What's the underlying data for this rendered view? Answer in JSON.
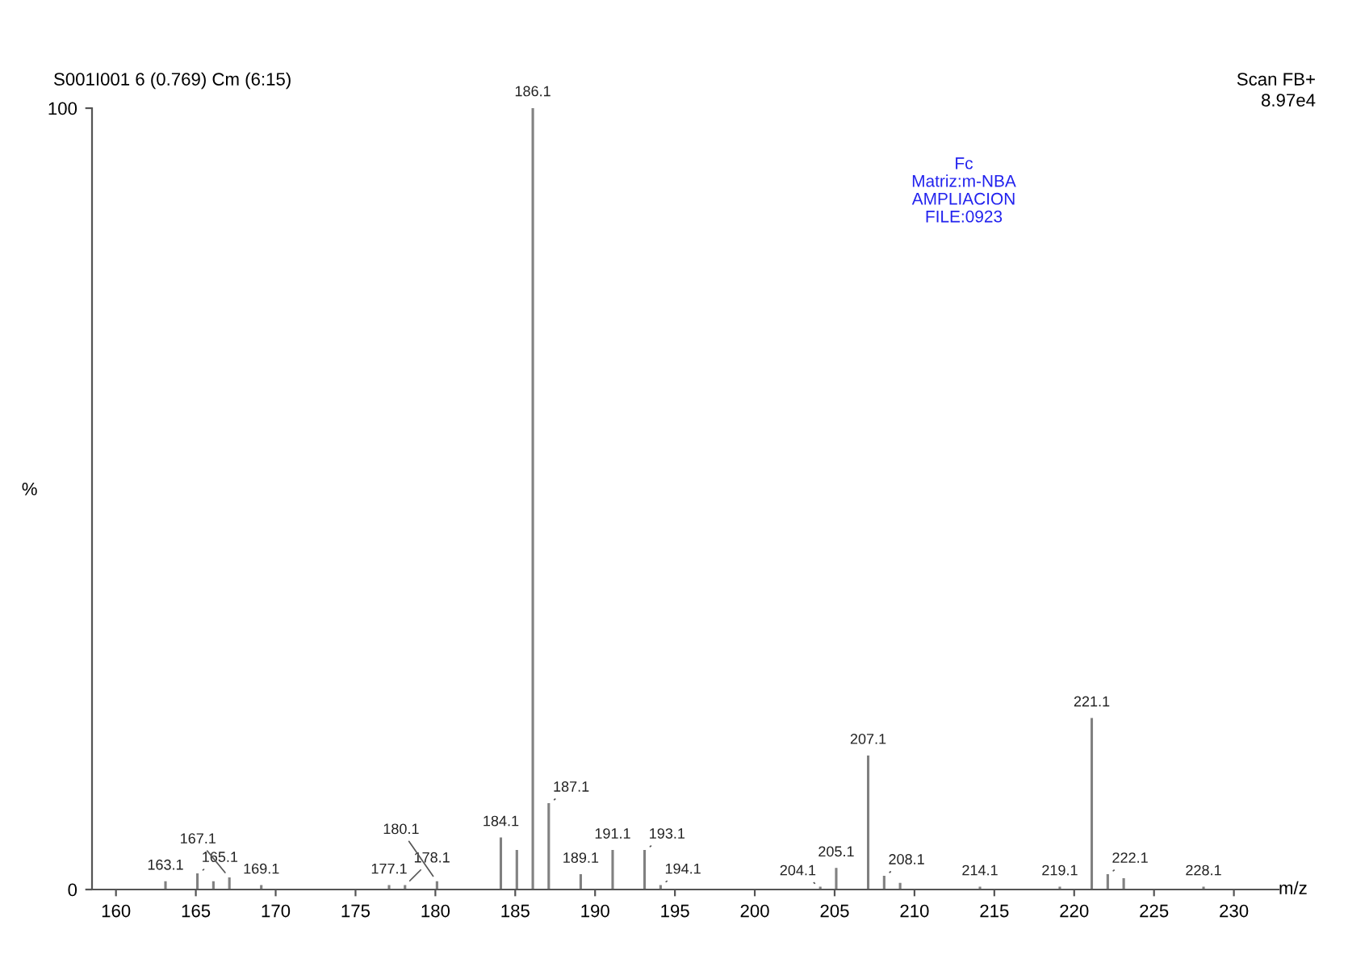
{
  "chart_data": {
    "type": "bar",
    "title": "S001I001 6 (0.769) Cm (6:15)",
    "xlabel": "m/z",
    "ylabel": "%",
    "x": [
      163.1,
      165.1,
      166.1,
      167.1,
      169.1,
      177.1,
      178.1,
      180.1,
      184.1,
      185.1,
      186.1,
      187.1,
      189.1,
      191.1,
      193.1,
      194.1,
      204.1,
      205.1,
      207.1,
      208.1,
      209.1,
      214.1,
      219.1,
      221.1,
      222.1,
      223.1,
      228.1
    ],
    "values": [
      1,
      2,
      1,
      1.5,
      0.5,
      0.5,
      0.5,
      1,
      6.6,
      5,
      100,
      11,
      1.9,
      5,
      5,
      0.5,
      0.3,
      2.7,
      17.1,
      1.7,
      0.8,
      0.3,
      0.3,
      21.9,
      1.9,
      1.4,
      0.3
    ],
    "color": "#808080",
    "xlim": [
      158.5,
      232.8
    ],
    "xticks": [
      160,
      165,
      170,
      175,
      180,
      185,
      190,
      195,
      200,
      205,
      210,
      215,
      220,
      225,
      230
    ],
    "ylim": [
      0,
      100
    ],
    "yticks": [
      0,
      100
    ],
    "grid": false,
    "annotations": [
      {
        "text": "163.1",
        "x": 163.1,
        "y": 1
      },
      {
        "text": "165.1",
        "x": 165.1,
        "y": 2
      },
      {
        "text": "167.1",
        "x": 167.1,
        "y": 1.5
      },
      {
        "text": "169.1",
        "x": 169.1,
        "y": 0.5
      },
      {
        "text": "177.1",
        "x": 177.1,
        "y": 0.5
      },
      {
        "text": "178.1",
        "x": 178.1,
        "y": 0.5
      },
      {
        "text": "180.1",
        "x": 180.1,
        "y": 1
      },
      {
        "text": "184.1",
        "x": 184.1,
        "y": 6.6
      },
      {
        "text": "186.1",
        "x": 186.1,
        "y": 100
      },
      {
        "text": "187.1",
        "x": 187.1,
        "y": 11
      },
      {
        "text": "189.1",
        "x": 189.1,
        "y": 1.9
      },
      {
        "text": "191.1",
        "x": 191.1,
        "y": 5
      },
      {
        "text": "193.1",
        "x": 193.1,
        "y": 5
      },
      {
        "text": "194.1",
        "x": 194.1,
        "y": 0.5
      },
      {
        "text": "204.1",
        "x": 204.1,
        "y": 0.3
      },
      {
        "text": "205.1",
        "x": 205.1,
        "y": 2.7
      },
      {
        "text": "207.1",
        "x": 207.1,
        "y": 17.1
      },
      {
        "text": "208.1",
        "x": 208.1,
        "y": 1.7
      },
      {
        "text": "214.1",
        "x": 214.1,
        "y": 0.3
      },
      {
        "text": "219.1",
        "x": 219.1,
        "y": 0.3
      },
      {
        "text": "221.1",
        "x": 221.1,
        "y": 21.9
      },
      {
        "text": "222.1",
        "x": 222.1,
        "y": 1.9
      },
      {
        "text": "228.1",
        "x": 228.1,
        "y": 0.3
      },
      "Scan FB+",
      "8.97e4",
      "Fc",
      "Matriz:m-NBA",
      "AMPLIACION",
      "FILE:0923"
    ]
  }
}
